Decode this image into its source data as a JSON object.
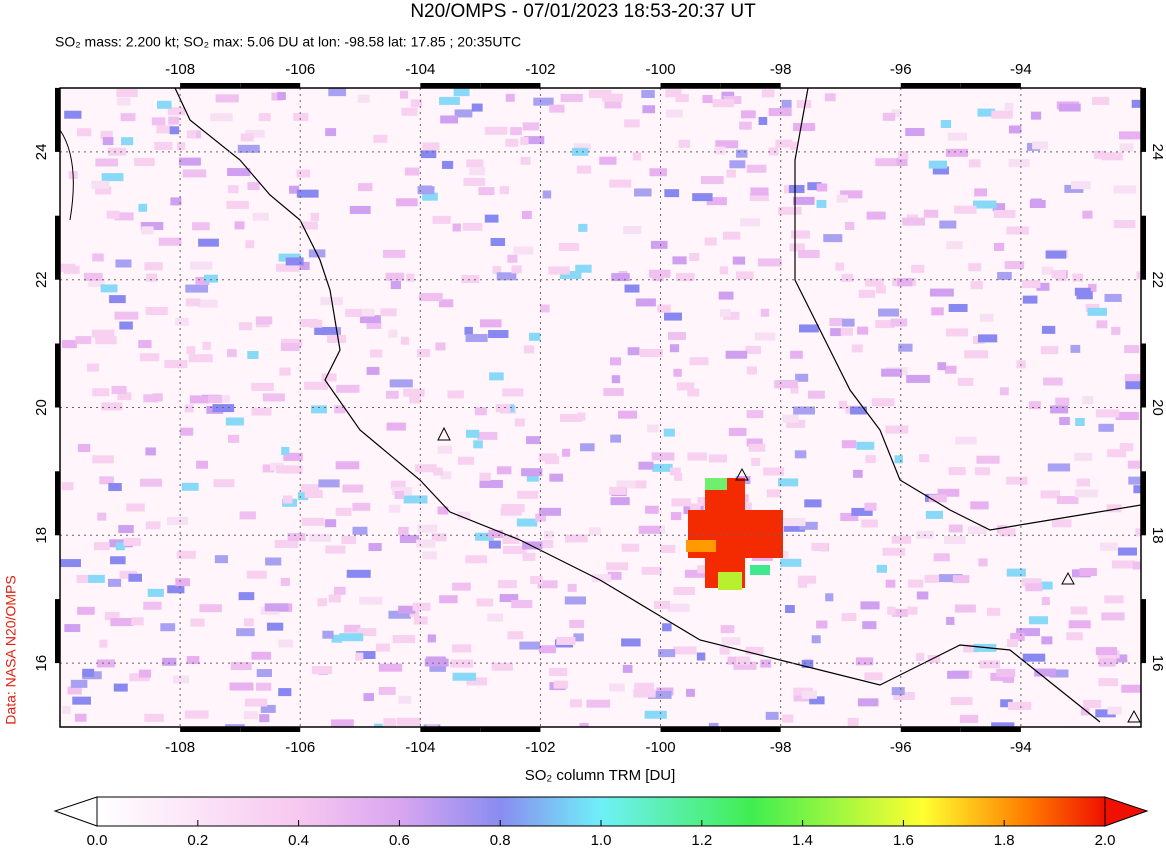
{
  "title": "N20/OMPS - 07/01/2023 18:53-20:37 UT",
  "subtitle": "SO₂ mass: 2.200 kt; SO₂ max: 5.06 DU at lon: -98.58 lat: 17.85 ; 20:35UTC",
  "credit": "Data: NASA N20/OMPS",
  "map": {
    "xlim": [
      -110,
      -92
    ],
    "ylim": [
      15,
      25
    ],
    "xticks": [
      -108,
      -106,
      -104,
      -102,
      -100,
      -98,
      -96,
      -94
    ],
    "yticks": [
      16,
      18,
      20,
      22,
      24
    ]
  },
  "colorbar": {
    "label": "SO₂ column TRM [DU]",
    "lim": [
      0,
      2
    ],
    "ticks": [
      {
        "value": 0,
        "label": "0.0"
      },
      {
        "value": 0.2,
        "label": "0.2"
      },
      {
        "value": 0.4,
        "label": "0.4"
      },
      {
        "value": 0.6,
        "label": "0.6"
      },
      {
        "value": 0.8,
        "label": "0.8"
      },
      {
        "value": 1,
        "label": "1.0"
      },
      {
        "value": 1.2,
        "label": "1.2"
      },
      {
        "value": 1.4,
        "label": "1.4"
      },
      {
        "value": 1.6,
        "label": "1.6"
      },
      {
        "value": 1.8,
        "label": "1.8"
      },
      {
        "value": 2,
        "label": "2.0"
      }
    ]
  }
}
